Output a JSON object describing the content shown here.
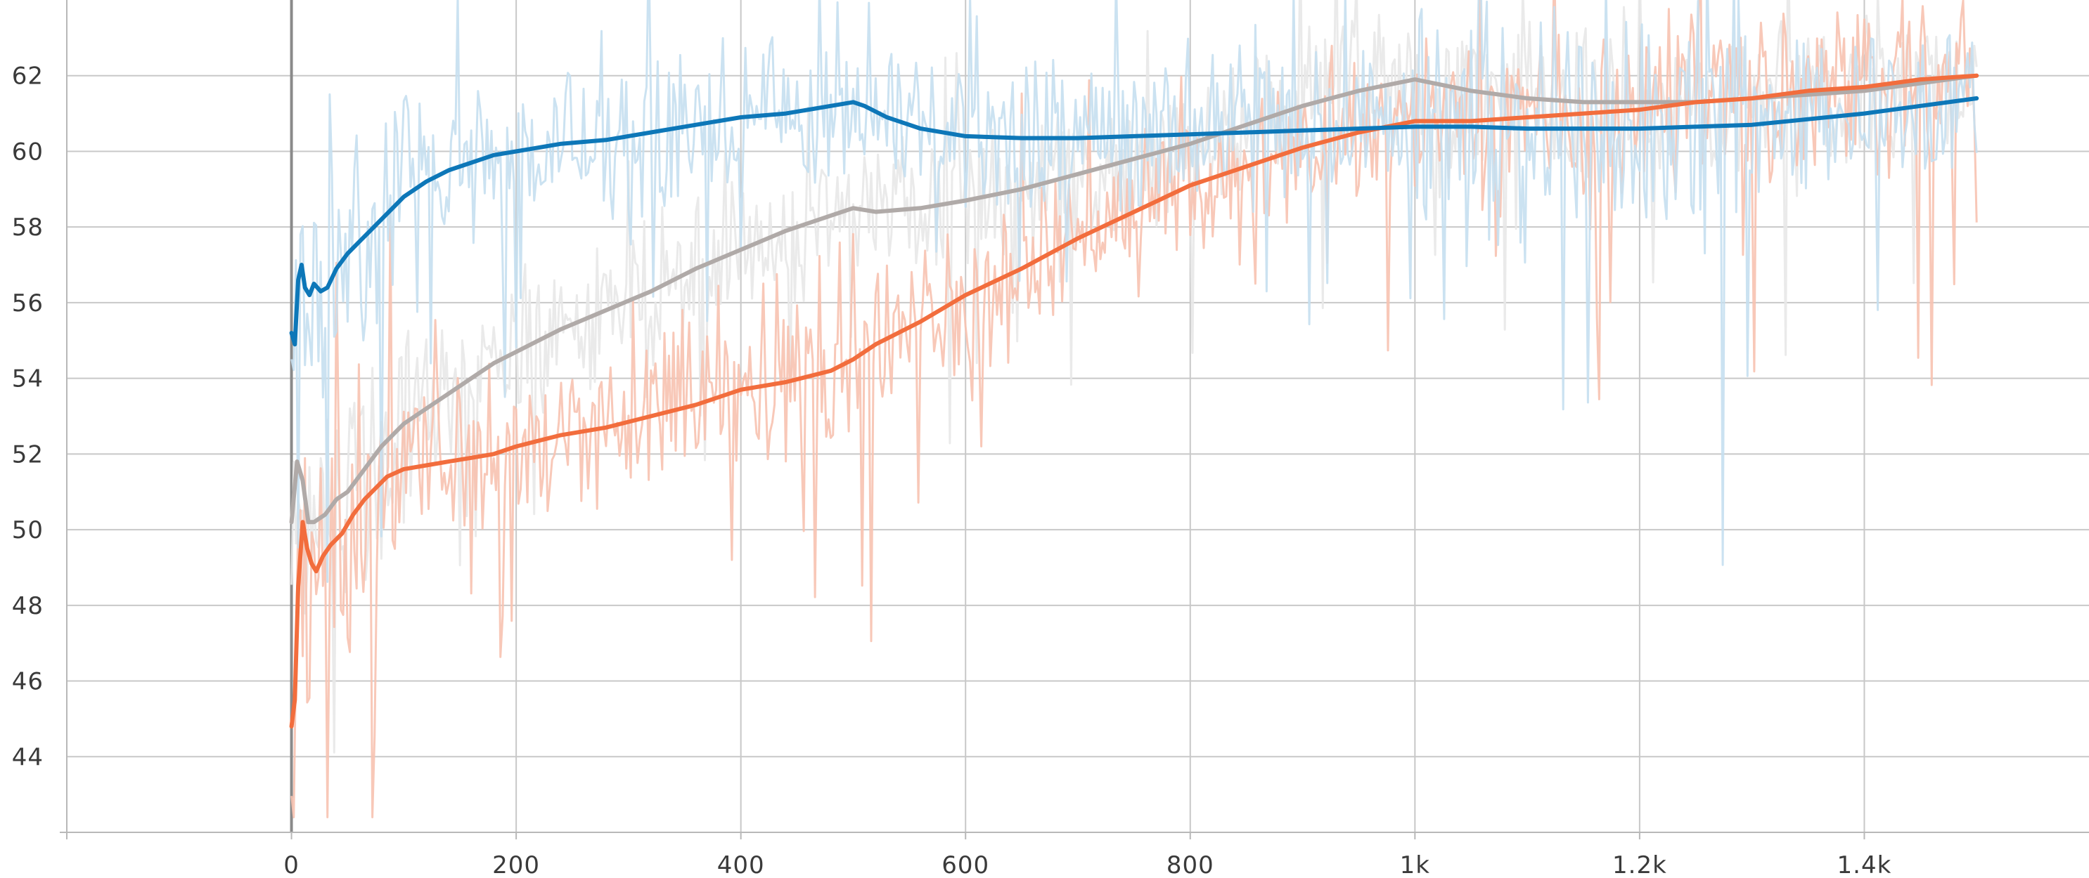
{
  "chart_data": {
    "type": "line",
    "title": "",
    "xlabel": "",
    "ylabel": "",
    "xlim": [
      -200,
      1600
    ],
    "ylim": [
      42.0,
      64.0
    ],
    "grid": true,
    "legend": "none",
    "x_ticks": [
      {
        "value": 0,
        "label": "0"
      },
      {
        "value": 200,
        "label": "200"
      },
      {
        "value": 400,
        "label": "400"
      },
      {
        "value": 600,
        "label": "600"
      },
      {
        "value": 800,
        "label": "800"
      },
      {
        "value": 1000,
        "label": "1k"
      },
      {
        "value": 1200,
        "label": "1.2k"
      },
      {
        "value": 1400,
        "label": "1.4k"
      }
    ],
    "y_ticks": [
      {
        "value": 44,
        "label": "44"
      },
      {
        "value": 46,
        "label": "46"
      },
      {
        "value": 48,
        "label": "48"
      },
      {
        "value": 50,
        "label": "50"
      },
      {
        "value": 52,
        "label": "52"
      },
      {
        "value": 54,
        "label": "54"
      },
      {
        "value": 56,
        "label": "56"
      },
      {
        "value": 58,
        "label": "58"
      },
      {
        "value": 60,
        "label": "60"
      },
      {
        "value": 62,
        "label": "62"
      }
    ],
    "series": [
      {
        "color": "#e8e8e8",
        "smooth_color": "#b0aaa8",
        "noise": 1.6,
        "raw_extra_dip": 0,
        "smoothed": [
          [
            0,
            50.2
          ],
          [
            5,
            51.8
          ],
          [
            10,
            51.3
          ],
          [
            15,
            50.2
          ],
          [
            20,
            50.2
          ],
          [
            30,
            50.4
          ],
          [
            40,
            50.8
          ],
          [
            50,
            51.0
          ],
          [
            60,
            51.4
          ],
          [
            70,
            51.8
          ],
          [
            80,
            52.2
          ],
          [
            90,
            52.5
          ],
          [
            100,
            52.8
          ],
          [
            120,
            53.2
          ],
          [
            140,
            53.6
          ],
          [
            160,
            54.0
          ],
          [
            180,
            54.4
          ],
          [
            200,
            54.7
          ],
          [
            240,
            55.3
          ],
          [
            280,
            55.8
          ],
          [
            320,
            56.3
          ],
          [
            360,
            56.9
          ],
          [
            400,
            57.4
          ],
          [
            440,
            57.9
          ],
          [
            480,
            58.3
          ],
          [
            500,
            58.5
          ],
          [
            520,
            58.4
          ],
          [
            560,
            58.5
          ],
          [
            600,
            58.7
          ],
          [
            650,
            59.0
          ],
          [
            700,
            59.4
          ],
          [
            750,
            59.8
          ],
          [
            800,
            60.2
          ],
          [
            850,
            60.7
          ],
          [
            900,
            61.2
          ],
          [
            950,
            61.6
          ],
          [
            1000,
            61.9
          ],
          [
            1050,
            61.6
          ],
          [
            1100,
            61.4
          ],
          [
            1150,
            61.3
          ],
          [
            1200,
            61.3
          ],
          [
            1250,
            61.3
          ],
          [
            1300,
            61.4
          ],
          [
            1350,
            61.5
          ],
          [
            1400,
            61.6
          ],
          [
            1450,
            61.8
          ],
          [
            1500,
            62.0
          ]
        ]
      },
      {
        "color": "#f7c2b0",
        "smooth_color": "#f26d3d",
        "noise": 1.9,
        "raw_extra_dip": 0,
        "smoothed": [
          [
            0,
            44.8
          ],
          [
            3,
            45.5
          ],
          [
            6,
            48.5
          ],
          [
            10,
            50.2
          ],
          [
            14,
            49.5
          ],
          [
            18,
            49.1
          ],
          [
            22,
            48.9
          ],
          [
            28,
            49.3
          ],
          [
            35,
            49.6
          ],
          [
            45,
            49.9
          ],
          [
            55,
            50.4
          ],
          [
            65,
            50.8
          ],
          [
            75,
            51.1
          ],
          [
            85,
            51.4
          ],
          [
            100,
            51.6
          ],
          [
            120,
            51.7
          ],
          [
            140,
            51.8
          ],
          [
            160,
            51.9
          ],
          [
            180,
            52.0
          ],
          [
            200,
            52.2
          ],
          [
            240,
            52.5
          ],
          [
            280,
            52.7
          ],
          [
            320,
            53.0
          ],
          [
            360,
            53.3
          ],
          [
            400,
            53.7
          ],
          [
            440,
            53.9
          ],
          [
            480,
            54.2
          ],
          [
            500,
            54.5
          ],
          [
            520,
            54.9
          ],
          [
            560,
            55.5
          ],
          [
            600,
            56.2
          ],
          [
            650,
            56.9
          ],
          [
            700,
            57.7
          ],
          [
            750,
            58.4
          ],
          [
            800,
            59.1
          ],
          [
            850,
            59.6
          ],
          [
            900,
            60.1
          ],
          [
            950,
            60.5
          ],
          [
            1000,
            60.8
          ],
          [
            1050,
            60.8
          ],
          [
            1100,
            60.9
          ],
          [
            1150,
            61.0
          ],
          [
            1200,
            61.1
          ],
          [
            1250,
            61.3
          ],
          [
            1300,
            61.4
          ],
          [
            1350,
            61.6
          ],
          [
            1400,
            61.7
          ],
          [
            1450,
            61.9
          ],
          [
            1500,
            62.0
          ]
        ]
      },
      {
        "color": "#c5dff0",
        "smooth_color": "#0d77b8",
        "noise": 1.7,
        "raw_extra_dip": 1,
        "smoothed": [
          [
            0,
            55.2
          ],
          [
            3,
            54.9
          ],
          [
            6,
            56.6
          ],
          [
            9,
            57.0
          ],
          [
            12,
            56.4
          ],
          [
            16,
            56.2
          ],
          [
            20,
            56.5
          ],
          [
            26,
            56.3
          ],
          [
            32,
            56.4
          ],
          [
            40,
            56.9
          ],
          [
            50,
            57.3
          ],
          [
            60,
            57.6
          ],
          [
            70,
            57.9
          ],
          [
            80,
            58.2
          ],
          [
            90,
            58.5
          ],
          [
            100,
            58.8
          ],
          [
            120,
            59.2
          ],
          [
            140,
            59.5
          ],
          [
            160,
            59.7
          ],
          [
            180,
            59.9
          ],
          [
            200,
            60.0
          ],
          [
            240,
            60.2
          ],
          [
            280,
            60.3
          ],
          [
            320,
            60.5
          ],
          [
            360,
            60.7
          ],
          [
            400,
            60.9
          ],
          [
            440,
            61.0
          ],
          [
            480,
            61.2
          ],
          [
            500,
            61.3
          ],
          [
            510,
            61.2
          ],
          [
            530,
            60.9
          ],
          [
            560,
            60.6
          ],
          [
            600,
            60.4
          ],
          [
            650,
            60.35
          ],
          [
            700,
            60.35
          ],
          [
            750,
            60.4
          ],
          [
            800,
            60.45
          ],
          [
            850,
            60.5
          ],
          [
            900,
            60.55
          ],
          [
            950,
            60.6
          ],
          [
            1000,
            60.65
          ],
          [
            1050,
            60.65
          ],
          [
            1100,
            60.6
          ],
          [
            1150,
            60.6
          ],
          [
            1200,
            60.6
          ],
          [
            1250,
            60.65
          ],
          [
            1300,
            60.7
          ],
          [
            1350,
            60.85
          ],
          [
            1400,
            61.0
          ],
          [
            1450,
            61.2
          ],
          [
            1500,
            61.4
          ]
        ]
      }
    ]
  }
}
